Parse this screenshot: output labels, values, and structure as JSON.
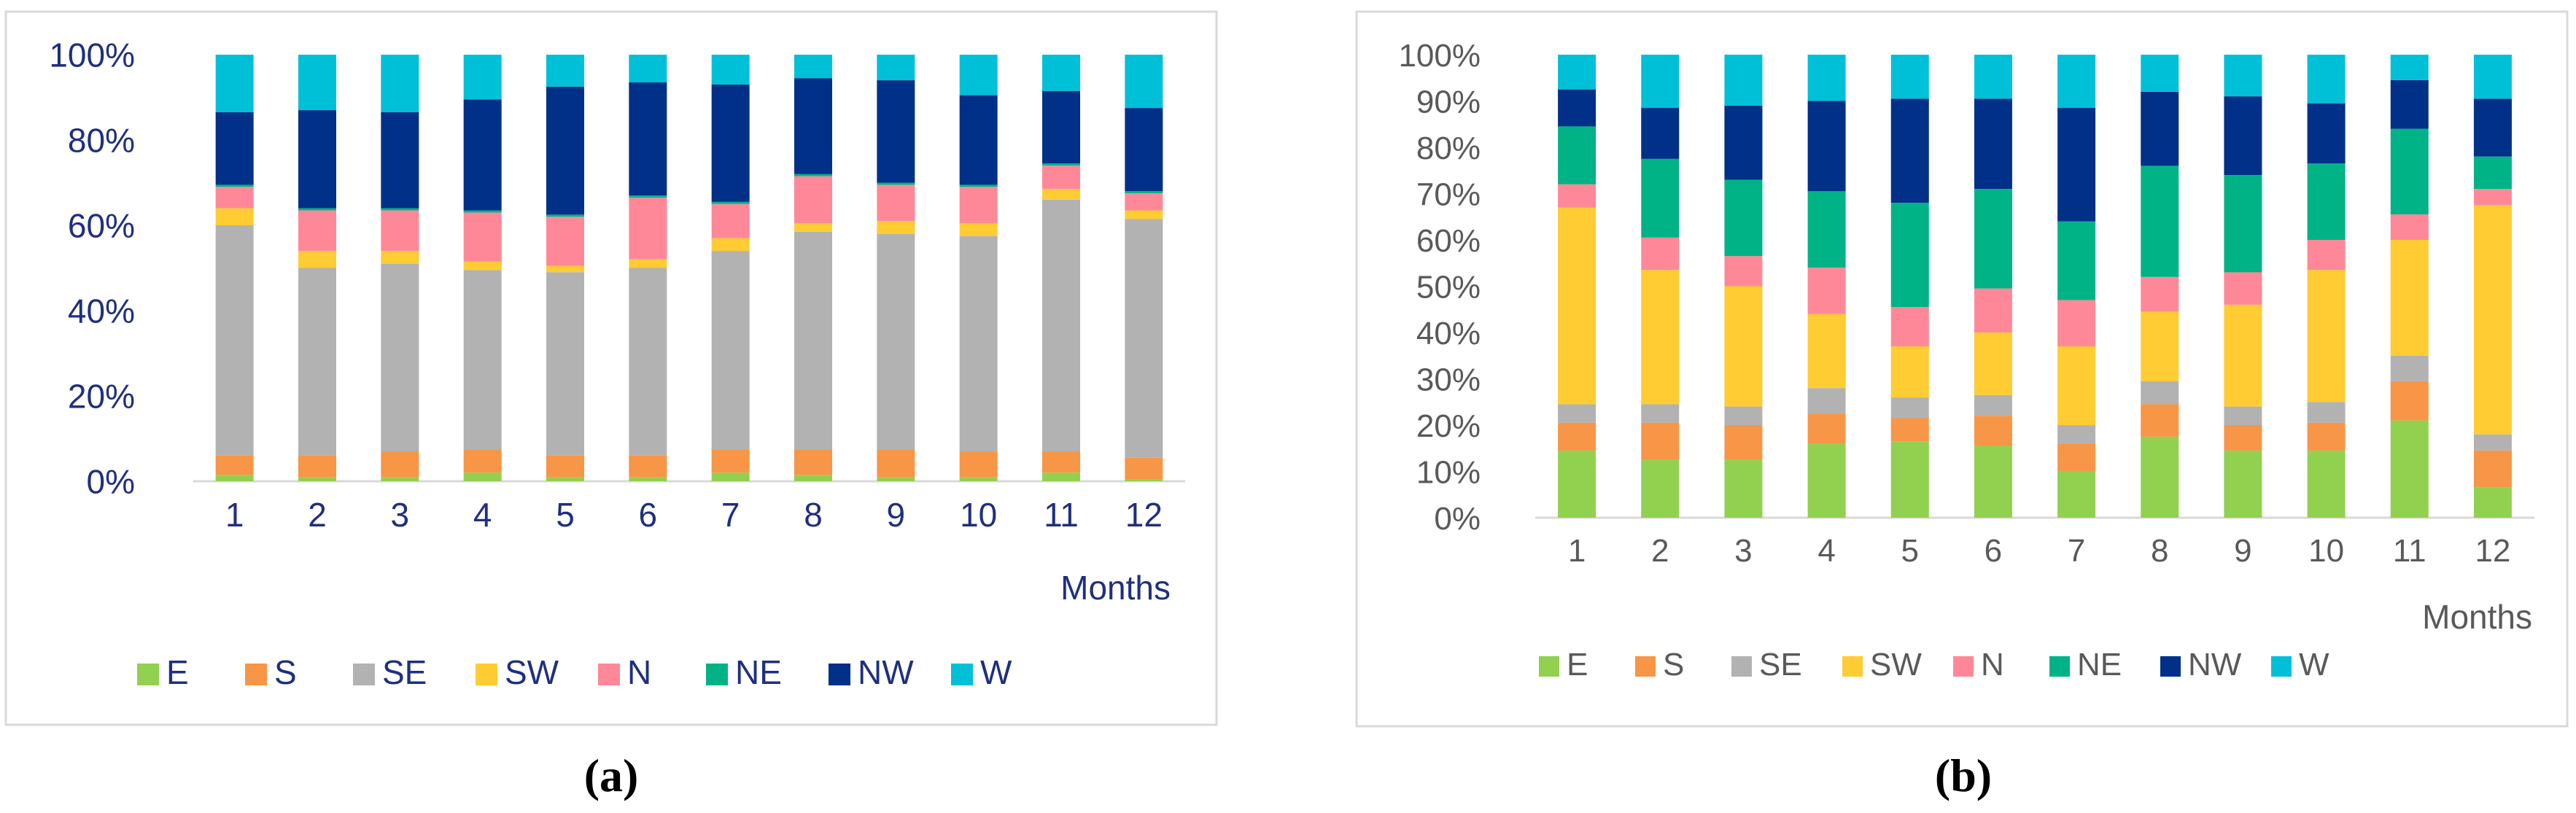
{
  "colors": {
    "E": "#92d050",
    "S": "#f79646",
    "SE": "#b2b2b2",
    "SW": "#ffcc33",
    "N": "#ff8898",
    "NE": "#00b386",
    "NW": "#003087",
    "W": "#00c0d8",
    "axis_text_a": "#1f2f7f",
    "axis_text_b": "#595959"
  },
  "chart_data": [
    {
      "type": "bar",
      "stacked": true,
      "panel_label": "(a)",
      "xlabel": "Months",
      "ylabel": "",
      "ylim": [
        0,
        100
      ],
      "yticks": [
        "0%",
        "20%",
        "40%",
        "60%",
        "80%",
        "100%"
      ],
      "categories": [
        "1",
        "2",
        "3",
        "4",
        "5",
        "6",
        "7",
        "8",
        "9",
        "10",
        "11",
        "12"
      ],
      "legend": [
        "E",
        "S",
        "SE",
        "SW",
        "N",
        "NE",
        "NW",
        "W"
      ],
      "legend_position": "bottom",
      "series": [
        {
          "name": "E",
          "values": [
            1.5,
            1,
            1,
            2,
            1,
            1,
            2,
            1.5,
            1,
            1,
            2,
            0.5
          ]
        },
        {
          "name": "S",
          "values": [
            4.5,
            5,
            6,
            5.5,
            5,
            5,
            5.5,
            6,
            6.5,
            6,
            5,
            5
          ]
        },
        {
          "name": "SE",
          "values": [
            54,
            44,
            44,
            42,
            43,
            44,
            46.5,
            51,
            50.5,
            50.5,
            59,
            56
          ]
        },
        {
          "name": "SW",
          "values": [
            4,
            4,
            3,
            2,
            1.5,
            2,
            3,
            2,
            3,
            3,
            2.5,
            2
          ]
        },
        {
          "name": "N",
          "values": [
            5,
            9.5,
            9.5,
            11.5,
            11.5,
            14.5,
            8,
            11,
            8.5,
            8.5,
            5.5,
            4
          ]
        },
        {
          "name": "NE",
          "values": [
            0.5,
            0.5,
            0.5,
            0.5,
            0.5,
            0.5,
            0.5,
            0.5,
            0.5,
            0.5,
            0.5,
            0.5
          ]
        },
        {
          "name": "NW",
          "values": [
            17,
            23,
            22.5,
            26,
            30,
            26.5,
            27.5,
            22.5,
            24,
            21,
            17,
            19.5
          ]
        },
        {
          "name": "W",
          "values": [
            13.5,
            13,
            13.5,
            10.5,
            7.5,
            6.5,
            7,
            5.5,
            6,
            9.5,
            8.5,
            12.5
          ]
        }
      ]
    },
    {
      "type": "bar",
      "stacked": true,
      "panel_label": "(b)",
      "xlabel": "Months",
      "ylabel": "",
      "ylim": [
        0,
        100
      ],
      "yticks": [
        "0%",
        "10%",
        "20%",
        "30%",
        "40%",
        "50%",
        "60%",
        "70%",
        "80%",
        "90%",
        "100%"
      ],
      "categories": [
        "1",
        "2",
        "3",
        "4",
        "5",
        "6",
        "7",
        "8",
        "9",
        "10",
        "11",
        "12"
      ],
      "legend": [
        "E",
        "S",
        "SE",
        "SW",
        "N",
        "NE",
        "NW",
        "W"
      ],
      "legend_position": "bottom",
      "series": [
        {
          "name": "E",
          "values": [
            14.5,
            12.5,
            12.5,
            16,
            16.5,
            15.5,
            10,
            17.5,
            14.5,
            14.5,
            21,
            6.5
          ]
        },
        {
          "name": "S",
          "values": [
            6,
            8,
            7.5,
            6.5,
            5,
            6.5,
            6,
            7,
            5.5,
            6,
            8.5,
            8
          ]
        },
        {
          "name": "SE",
          "values": [
            4,
            4,
            4,
            5.5,
            4.5,
            4.5,
            4,
            5,
            4,
            4.5,
            5.5,
            3.5
          ]
        },
        {
          "name": "SW",
          "values": [
            42.5,
            29,
            26,
            16,
            11,
            13.5,
            17,
            15,
            22,
            28.5,
            25,
            49.5
          ]
        },
        {
          "name": "N",
          "values": [
            5,
            7,
            6.5,
            10,
            8.5,
            9.5,
            10,
            7.5,
            7,
            6.5,
            5.5,
            3.5
          ]
        },
        {
          "name": "NE",
          "values": [
            12.5,
            17,
            16.5,
            16.5,
            22.5,
            21.5,
            17,
            24,
            21,
            16.5,
            18.5,
            7
          ]
        },
        {
          "name": "NW",
          "values": [
            8,
            11,
            16,
            19.5,
            22.5,
            19.5,
            24.5,
            16,
            17,
            13,
            10.5,
            12.5
          ]
        },
        {
          "name": "W",
          "values": [
            7.5,
            11.5,
            11,
            10,
            9.5,
            9.5,
            11.5,
            8,
            9,
            10.5,
            5.5,
            9.5
          ]
        }
      ]
    }
  ]
}
